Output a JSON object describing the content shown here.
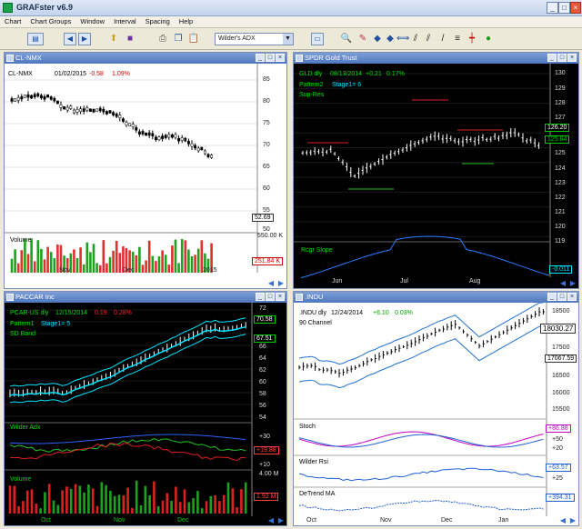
{
  "app": {
    "title": "GRAFster v6.9"
  },
  "menu": [
    "Chart",
    "Chart Groups",
    "Window",
    "Interval",
    "Spacing",
    "Help"
  ],
  "toolbar": {
    "symbol_combo": "Wilder's ADX"
  },
  "icons": [
    "app-icon",
    "chart-type-icon",
    "back-arrow-icon",
    "forward-arrow-icon",
    "open-folder-icon",
    "save-icon",
    "print-icon",
    "copy-icon",
    "paste-icon",
    "calendar-icon",
    "zoom-icon",
    "eraser-icon",
    "scroll-left-icon",
    "scroll-right-icon",
    "shrink-icon",
    "expand-icon",
    "draw-line-icon",
    "parallel-lines-icon",
    "trendline-icon",
    "horizontal-lines-icon",
    "crosshair-icon",
    "help-icon"
  ],
  "colors": {
    "up": "#00c000",
    "down": "#ff2020",
    "cyan": "#00e5ff",
    "magenta": "#ff40ff",
    "blue": "#2060d0",
    "yellow": "#ffff00"
  },
  "panels": [
    {
      "title": "CL-NMX",
      "header": {
        "sym": "CL-NMX",
        "interval": "01/02/2015",
        "chg": "-0.58",
        "pct": "1.09%"
      },
      "price_axis": [
        "85",
        "80",
        "75",
        "70",
        "65",
        "60",
        "55",
        "50"
      ],
      "price_last": "52.69",
      "volume_label": "Volume",
      "volume_axis": "550.00 K",
      "volume_last": "251.84 K",
      "x_axis": [
        "Nov",
        "Dec",
        "2015"
      ]
    },
    {
      "title": "SPDR Gold Trust",
      "header": {
        "sym": "GLD dly",
        "interval": "08/13/2014",
        "chg": "+0.21",
        "pct": "0.17%"
      },
      "line2": {
        "name": "Pattern2",
        "stage": "Stage1= 6"
      },
      "line3": "Sup-Res",
      "price_axis": [
        "130",
        "129",
        "128",
        "127",
        "126",
        "125",
        "124",
        "123",
        "122",
        "121",
        "120",
        "119"
      ],
      "price_last": "126.20",
      "price_last2": "125.84",
      "wave_labels": [
        "1",
        "2",
        "3",
        "4",
        "5",
        "6",
        "7",
        "8",
        "9",
        "1",
        "2",
        "3"
      ],
      "osc_label": "Rcgr Slope",
      "osc_last": "-0.011",
      "x_axis": [
        "Jun",
        "Jul",
        "Aug"
      ]
    },
    {
      "title": "PACCAR Inc",
      "header": {
        "sym": "PCAR-US dly",
        "interval": "12/15/2014",
        "chg": "0.19",
        "pct": "0.28%"
      },
      "line2": {
        "name": "Pattern1",
        "stage": "Stage1= 5"
      },
      "line3": "SD Band",
      "price_axis": [
        "72",
        "70",
        "68",
        "66",
        "64",
        "62",
        "60",
        "58",
        "56",
        "54"
      ],
      "price_last": "70.58",
      "price_last2": "67.51",
      "wave_labels": [
        "13",
        "14",
        "16",
        "17",
        "18",
        "11",
        "15",
        "17",
        "18",
        "19"
      ],
      "adx_label": "Wilder Adx",
      "adx_axis": [
        "+30",
        "+10"
      ],
      "adx_last": "+19.88",
      "volume_label": "Volume",
      "volume_axis": "4.00 M",
      "volume_last": "1.92 M",
      "x_axis": [
        "Oct",
        "Nov",
        "Dec"
      ]
    },
    {
      "title": ".INDU",
      "header": {
        "sym": ".INDU dly",
        "interval": "12/24/2014",
        "chg": "+6.10",
        "pct": "0.03%"
      },
      "line2": "90 Channel",
      "price_axis": [
        "18500",
        "18000",
        "17500",
        "17000",
        "16500",
        "16000",
        "15500"
      ],
      "price_last": "18030.27",
      "price_last2": "17067.59",
      "stoch_label": "Stoch",
      "stoch_axis": [
        "+50",
        "+20"
      ],
      "stoch_last": "+86.88",
      "rsi_label": "Wilder Rsi",
      "rsi_axis": [
        "+25"
      ],
      "rsi_last": "+63.57",
      "detrend_label": "DeTrend MA",
      "detrend_last": "+394.31",
      "x_axis": [
        "Oct",
        "Nov",
        "Dec",
        "Jan"
      ]
    }
  ]
}
